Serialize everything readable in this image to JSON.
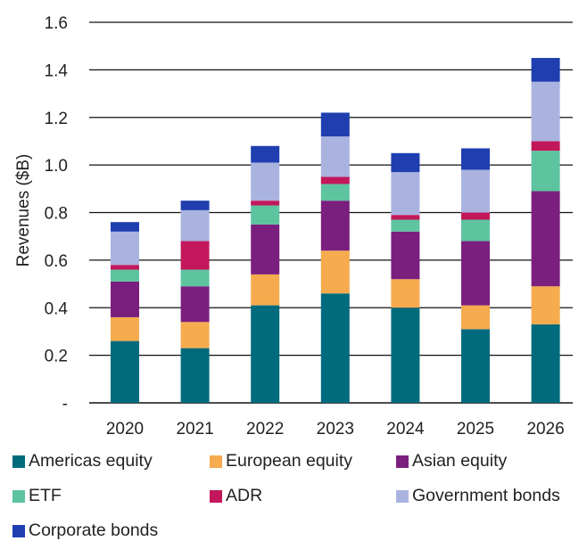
{
  "chart_data": {
    "type": "bar",
    "stacked": true,
    "categories": [
      "2020",
      "2021",
      "2022",
      "2023",
      "2024",
      "2025",
      "2026"
    ],
    "ylabel": "Revenues ($B)",
    "xlabel": "",
    "ylim": [
      0,
      1.6
    ],
    "yticks": [
      "-",
      "0.2",
      "0.4",
      "0.6",
      "0.8",
      "1.0",
      "1.2",
      "1.4",
      "1.6"
    ],
    "yticks_values": [
      0,
      0.2,
      0.4,
      0.6,
      0.8,
      1.0,
      1.2,
      1.4,
      1.6
    ],
    "grid": true,
    "legend_position": "bottom",
    "series": [
      {
        "name": "Americas equity",
        "color": "#006b7d",
        "values": [
          0.26,
          0.23,
          0.41,
          0.46,
          0.4,
          0.31,
          0.33
        ]
      },
      {
        "name": "European equity",
        "color": "#f5ab4e",
        "values": [
          0.1,
          0.11,
          0.13,
          0.18,
          0.12,
          0.1,
          0.16
        ]
      },
      {
        "name": "Asian equity",
        "color": "#7b1f7e",
        "values": [
          0.15,
          0.15,
          0.21,
          0.21,
          0.2,
          0.27,
          0.4
        ]
      },
      {
        "name": "ETF",
        "color": "#5ec4a0",
        "values": [
          0.05,
          0.07,
          0.08,
          0.07,
          0.05,
          0.09,
          0.17
        ]
      },
      {
        "name": "ADR",
        "color": "#c2185b",
        "values": [
          0.02,
          0.12,
          0.02,
          0.03,
          0.02,
          0.03,
          0.04
        ]
      },
      {
        "name": "Government bonds",
        "color": "#aab3e0",
        "values": [
          0.14,
          0.13,
          0.16,
          0.17,
          0.18,
          0.18,
          0.25
        ]
      },
      {
        "name": "Corporate bonds",
        "color": "#1f3fb0",
        "values": [
          0.04,
          0.04,
          0.07,
          0.1,
          0.08,
          0.09,
          0.1
        ]
      }
    ]
  }
}
